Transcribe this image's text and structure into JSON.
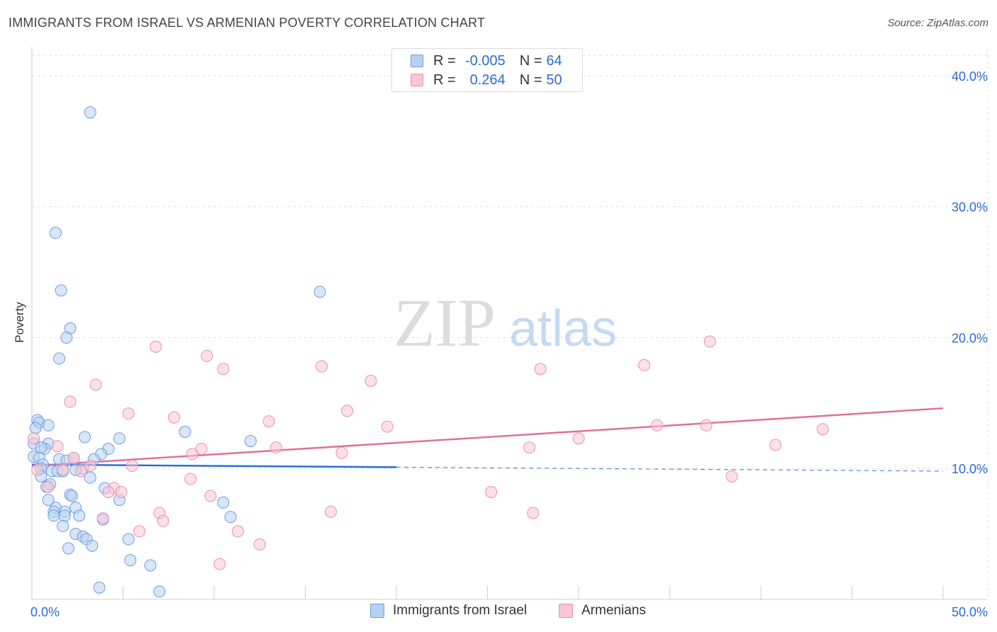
{
  "title": "IMMIGRANTS FROM ISRAEL VS ARMENIAN POVERTY CORRELATION CHART",
  "source": "Source: ZipAtlas.com",
  "watermark": {
    "zip": "ZIP",
    "atlas": "atlas"
  },
  "colors": {
    "blue": "#6a9ee0",
    "blue_fill": "#b9d1f1",
    "blue_line": "#2c6fd0",
    "pink": "#e890ae",
    "pink_fill": "#f9c6d6",
    "pink_line": "#e0709a",
    "axis_text": "#2f6bd0"
  },
  "legend": {
    "r_label": "R =",
    "n_label": "N =",
    "series1": {
      "r": "-0.005",
      "n": "64"
    },
    "series2": {
      "r": "0.264",
      "n": "50"
    }
  },
  "chart_data": {
    "type": "scatter",
    "title": "IMMIGRANTS FROM ISRAEL VS ARMENIAN POVERTY CORRELATION CHART",
    "xlabel": "",
    "ylabel": "Poverty",
    "xlim": [
      0,
      50
    ],
    "ylim": [
      0,
      42
    ],
    "x_tick_labels": [
      "0.0%",
      "50.0%"
    ],
    "y_ticks": [
      10,
      20,
      30,
      40
    ],
    "y_tick_labels": [
      "10.0%",
      "20.0%",
      "30.0%",
      "40.0%"
    ],
    "grid": true,
    "series": [
      {
        "name": "Immigrants from Israel",
        "r": -0.005,
        "n": 64,
        "trend": {
          "x0": 0,
          "y0": 10.3,
          "x1": 20,
          "y1": 10.1,
          "dashed_to_x": 50,
          "dashed_to_y": 9.8
        },
        "points": [
          [
            3.2,
            37.2
          ],
          [
            1.3,
            28
          ],
          [
            1.6,
            23.6
          ],
          [
            2.1,
            20.7
          ],
          [
            1.9,
            20
          ],
          [
            1.5,
            18.4
          ],
          [
            0.3,
            13.7
          ],
          [
            0.4,
            13.5
          ],
          [
            0.9,
            13.3
          ],
          [
            0.2,
            13.1
          ],
          [
            0.1,
            11.9
          ],
          [
            0.9,
            11.9
          ],
          [
            0.7,
            11.5
          ],
          [
            0.5,
            11.6
          ],
          [
            2.9,
            12.4
          ],
          [
            4.8,
            12.3
          ],
          [
            4.2,
            11.5
          ],
          [
            3.8,
            11.1
          ],
          [
            0.1,
            10.9
          ],
          [
            0.4,
            10.8
          ],
          [
            1.5,
            10.7
          ],
          [
            1.9,
            10.6
          ],
          [
            2.3,
            10.8
          ],
          [
            3.4,
            10.7
          ],
          [
            0.6,
            10.3
          ],
          [
            0.5,
            10
          ],
          [
            1.1,
            9.8
          ],
          [
            1.4,
            9.8
          ],
          [
            1.7,
            9.8
          ],
          [
            2.8,
            10
          ],
          [
            0.5,
            9.4
          ],
          [
            3.2,
            9.3
          ],
          [
            1.0,
            8.8
          ],
          [
            0.8,
            8.6
          ],
          [
            4.0,
            8.5
          ],
          [
            2.1,
            8
          ],
          [
            2.2,
            7.9
          ],
          [
            0.9,
            7.6
          ],
          [
            4.8,
            7.6
          ],
          [
            1.3,
            7
          ],
          [
            2.4,
            7
          ],
          [
            1.2,
            6.7
          ],
          [
            1.8,
            6.7
          ],
          [
            1.2,
            6.4
          ],
          [
            1.8,
            6.4
          ],
          [
            2.6,
            6.4
          ],
          [
            3.9,
            6.1
          ],
          [
            1.7,
            5.6
          ],
          [
            2.4,
            5
          ],
          [
            2.8,
            4.8
          ],
          [
            3.0,
            4.6
          ],
          [
            5.3,
            4.6
          ],
          [
            3.3,
            4.1
          ],
          [
            2.0,
            3.9
          ],
          [
            5.4,
            3
          ],
          [
            6.5,
            2.6
          ],
          [
            3.7,
            0.9
          ],
          [
            7.0,
            0.6
          ],
          [
            8.4,
            12.8
          ],
          [
            12.0,
            12.1
          ],
          [
            10.5,
            7.4
          ],
          [
            10.9,
            6.3
          ],
          [
            15.8,
            23.5
          ],
          [
            2.4,
            9.9
          ]
        ]
      },
      {
        "name": "Armenians",
        "r": 0.264,
        "n": 50,
        "trend": {
          "x0": 0,
          "y0": 10.2,
          "x1": 50,
          "y1": 14.6
        },
        "points": [
          [
            0.1,
            12.3
          ],
          [
            0.3,
            9.9
          ],
          [
            1.4,
            11.7
          ],
          [
            2.1,
            15.1
          ],
          [
            3.5,
            16.4
          ],
          [
            2.3,
            10.8
          ],
          [
            3.2,
            10.2
          ],
          [
            2.7,
            9.8
          ],
          [
            1.7,
            9.9
          ],
          [
            0.9,
            8.6
          ],
          [
            5.3,
            14.2
          ],
          [
            5.5,
            10.2
          ],
          [
            6.8,
            19.3
          ],
          [
            7.8,
            13.9
          ],
          [
            4.5,
            8.5
          ],
          [
            4.2,
            8.2
          ],
          [
            4.9,
            8.2
          ],
          [
            3.9,
            6.2
          ],
          [
            7.0,
            6.6
          ],
          [
            7.2,
            6
          ],
          [
            5.9,
            5.2
          ],
          [
            8.7,
            9.2
          ],
          [
            8.8,
            11.1
          ],
          [
            9.3,
            11.5
          ],
          [
            9.6,
            18.6
          ],
          [
            10.5,
            17.6
          ],
          [
            9.8,
            7.9
          ],
          [
            11.3,
            5.2
          ],
          [
            10.3,
            2.7
          ],
          [
            13.0,
            13.6
          ],
          [
            13.4,
            11.6
          ],
          [
            12.5,
            4.2
          ],
          [
            15.9,
            17.8
          ],
          [
            17.3,
            14.4
          ],
          [
            17.0,
            11.2
          ],
          [
            16.4,
            6.7
          ],
          [
            18.6,
            16.7
          ],
          [
            19.5,
            13.2
          ],
          [
            25.2,
            8.2
          ],
          [
            27.3,
            11.6
          ],
          [
            27.5,
            6.6
          ],
          [
            27.9,
            17.6
          ],
          [
            30.0,
            12.3
          ],
          [
            33.6,
            17.9
          ],
          [
            34.3,
            13.3
          ],
          [
            37.0,
            13.3
          ],
          [
            37.2,
            19.7
          ],
          [
            38.4,
            9.4
          ],
          [
            40.8,
            11.8
          ],
          [
            43.4,
            13.0
          ]
        ]
      }
    ]
  }
}
